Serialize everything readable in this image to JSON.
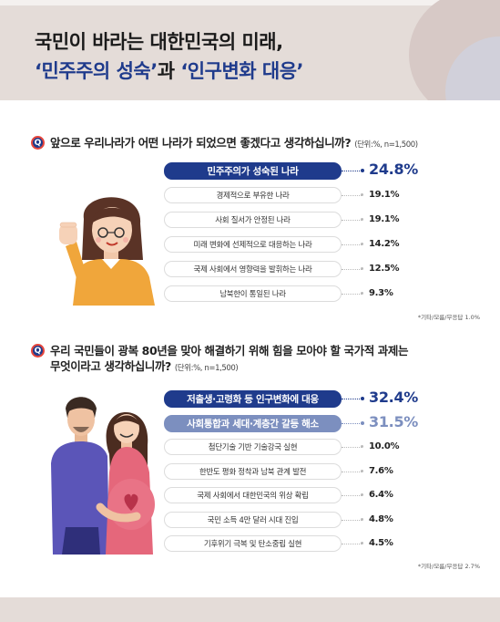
{
  "header": {
    "title_line1": "국민이 바라는 대한민국의 미래,",
    "title_line2_part1": "‘민주주의 성숙’",
    "title_line2_part2": "과",
    "title_line2_part3": "‘인구변화 대응’"
  },
  "q1": {
    "icon": "Q",
    "question": "앞으로 우리나라가 어떤 나라가 되었으면 좋겠다고 생각하십니까?",
    "unit": "(단위:%, n=1,500)",
    "note": "*기타/모름/무응답 1.0%"
  },
  "q2": {
    "icon": "Q",
    "question_line1": "우리 국민들이 광복 80년을 맞아 해결하기 위해 힘을 모아야 할 국가적 과제는",
    "question_line2": "무엇이라고 생각하십니까?",
    "unit": "(단위:%, n=1,500)",
    "note": "*기타/모름/무응답 2.7%"
  },
  "chart_data": [
    {
      "type": "bar",
      "categories": [
        "민주주의가 성숙된 나라",
        "경제적으로 부유한 나라",
        "사회 질서가 안정된 나라",
        "미래 변화에 선제적으로 대응하는 나라",
        "국제 사회에서 영향력을 발휘하는 나라",
        "남북한이 통일된 나라"
      ],
      "values": [
        24.8,
        19.1,
        19.1,
        14.2,
        12.5,
        9.3
      ],
      "value_labels": [
        "24.8%",
        "19.1%",
        "19.1%",
        "14.2%",
        "12.5%",
        "9.3%"
      ],
      "highlight": [
        1,
        0,
        0,
        0,
        0,
        0
      ],
      "colors": {
        "primary": "#1f3b8c",
        "secondary": "#7c8fbf",
        "normal": "#ffffff"
      }
    },
    {
      "type": "bar",
      "categories": [
        "저출생·고령화 등 인구변화에 대응",
        "사회통합과 세대·계층간 갈등 해소",
        "첨단기술 기반 기술강국 실현",
        "한반도 평화 정착과 남북 관계 발전",
        "국제 사회에서 대한민국의 위상 확립",
        "국민 소득 4만 달러 시대 진입",
        "기후위기 극복 및 탄소중립 실현"
      ],
      "values": [
        32.4,
        31.5,
        10.0,
        7.6,
        6.4,
        4.8,
        4.5
      ],
      "value_labels": [
        "32.4%",
        "31.5%",
        "10.0%",
        "7.6%",
        "6.4%",
        "4.8%",
        "4.5%"
      ],
      "highlight": [
        1,
        2,
        0,
        0,
        0,
        0,
        0
      ],
      "colors": {
        "primary": "#1f3b8c",
        "secondary": "#7c8fbf",
        "normal": "#ffffff"
      }
    }
  ]
}
